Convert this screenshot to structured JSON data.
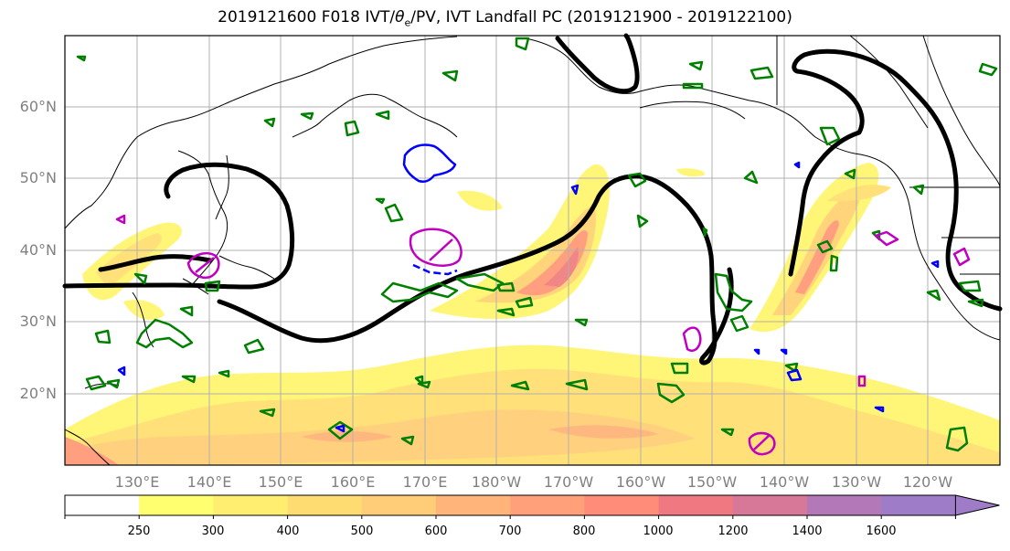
{
  "title": {
    "prefix": "2019121600 F018 IVT/",
    "theta": "θ",
    "theta_sub": "e",
    "suffix": "/PV, IVT Landfall PC (2019121900 - 2019122100)"
  },
  "latitude_labels": [
    "60°N",
    "50°N",
    "40°N",
    "30°N",
    "20°N"
  ],
  "longitude_labels": [
    "130°E",
    "140°E",
    "150°E",
    "160°E",
    "170°E",
    "180°W",
    "170°W",
    "160°W",
    "150°W",
    "140°W",
    "130°W",
    "120°W"
  ],
  "colorbar": {
    "ticks": [
      "250",
      "300",
      "400",
      "500",
      "600",
      "700",
      "800",
      "1000",
      "1200",
      "1400",
      "1600"
    ],
    "colors": [
      "#ffffff",
      "#ffff70",
      "#ffee70",
      "#ffdc72",
      "#ffcc78",
      "#ffb47a",
      "#ffa07a",
      "#ff8c78",
      "#f07880",
      "#d87898",
      "#b278b8",
      "#9e7cc8"
    ],
    "extend": "max"
  },
  "map_colors": {
    "land_outline": "#000000",
    "grid": "#b0b0b0",
    "pc_contour": "#000000",
    "theta_e_contour": "#008000",
    "pv_contour": "#0000ff",
    "landfall_marker": "#c000c0"
  }
}
